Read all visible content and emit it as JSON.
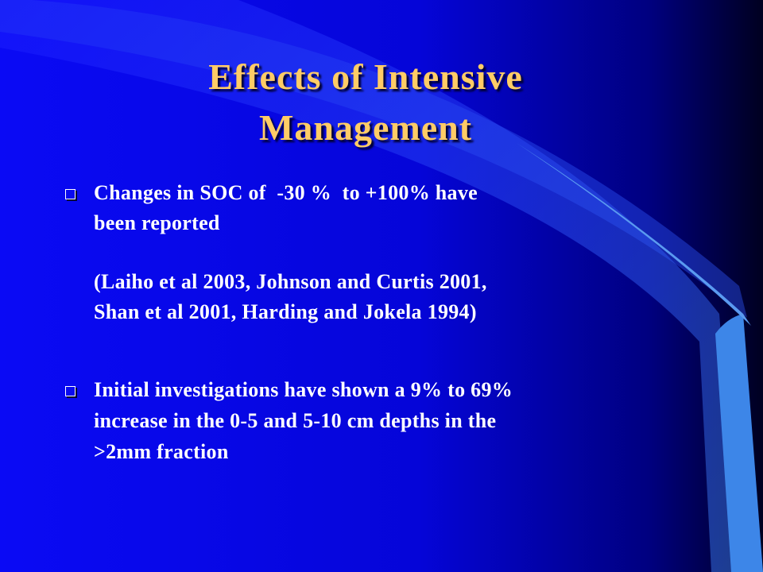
{
  "title": {
    "lines": [
      "Effects of Intensive",
      "Management"
    ]
  },
  "items": [
    {
      "bullet": true,
      "lines": [
        "Changes in SOC of  -30 %  to +100% have",
        "been reported"
      ]
    },
    {
      "bullet": false,
      "lines": [
        "(Laiho et al 2003, Johnson and Curtis 2001,",
        "Shan et al 2001, Harding and Jokela 1994)"
      ]
    },
    {
      "bullet": true,
      "lines": [
        "Initial investigations have shown a 9% to 69%",
        "increase in the 0-5 and 5-10 cm depths in the",
        ">2mm fraction"
      ]
    }
  ]
}
